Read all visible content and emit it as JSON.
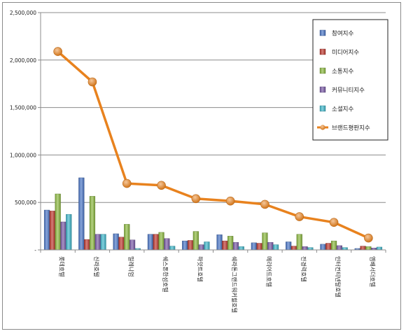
{
  "chart_data": {
    "type": "bar",
    "title": "",
    "xlabel": "",
    "ylabel": "",
    "ylim": [
      0,
      2500000
    ],
    "yticks": [
      "-",
      "500,000",
      "1,000,000",
      "1,500,000",
      "2,000,000",
      "2,500,000"
    ],
    "grid": true,
    "legend_position": "right",
    "categories": [
      "롯데호텔",
      "신라호텔",
      "밀레니엄",
      "쉐스톤한섬호텔",
      "하얏트호텔",
      "쉐라톤그랜드워커힐호텔",
      "메리어트호텔",
      "전경력호텔",
      "인터컨티넨탈호텔",
      "엠배서더호텔"
    ],
    "series": [
      {
        "name": "참여지수",
        "type": "bar",
        "color": "#4a76c7",
        "values": [
          420000,
          760000,
          170000,
          165000,
          95000,
          160000,
          75000,
          85000,
          60000,
          15000
        ]
      },
      {
        "name": "미디어지수",
        "type": "bar",
        "color": "#c0392f",
        "values": [
          410000,
          110000,
          135000,
          165000,
          100000,
          95000,
          70000,
          40000,
          70000,
          40000
        ]
      },
      {
        "name": "소통지수",
        "type": "bar",
        "color": "#8cba3f",
        "values": [
          590000,
          565000,
          270000,
          185000,
          195000,
          145000,
          180000,
          165000,
          95000,
          35000
        ]
      },
      {
        "name": "커뮤니티지수",
        "type": "bar",
        "color": "#7a5aa8",
        "values": [
          295000,
          165000,
          105000,
          120000,
          55000,
          80000,
          80000,
          35000,
          45000,
          20000
        ]
      },
      {
        "name": "소셜지수",
        "type": "bar",
        "color": "#3fb8cc",
        "values": [
          375000,
          165000,
          15000,
          40000,
          85000,
          35000,
          55000,
          25000,
          25000,
          30000
        ]
      },
      {
        "name": "브랜드평판지수",
        "type": "line",
        "color": "#e8821e",
        "values": [
          2090000,
          1770000,
          700000,
          680000,
          540000,
          515000,
          480000,
          350000,
          290000,
          125000
        ]
      }
    ]
  }
}
